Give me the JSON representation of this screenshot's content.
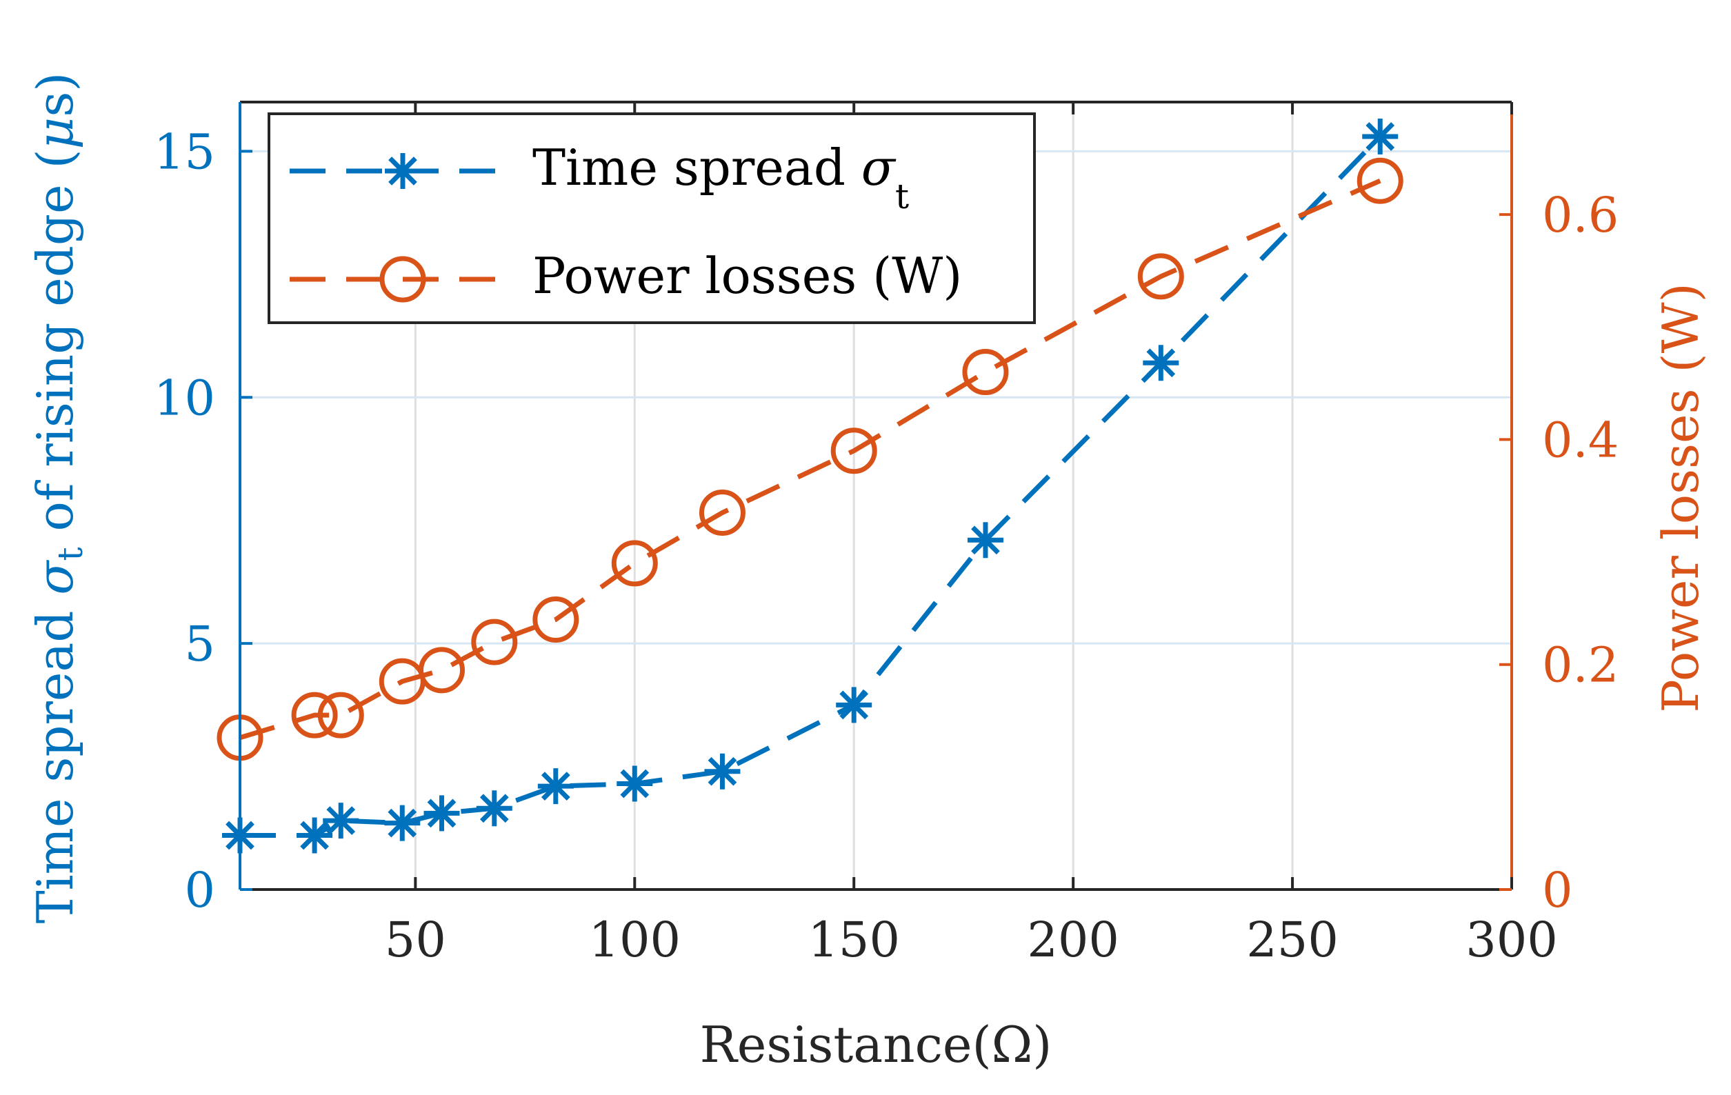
{
  "chart_data": {
    "type": "line",
    "xlabel": "Resistance(Ω)",
    "xlim": [
      10,
      300
    ],
    "xticks": [
      50,
      100,
      150,
      200,
      250,
      300
    ],
    "left_axis": {
      "label_pre": "Time spread ",
      "label_sigma": "σ",
      "label_sub": "t",
      "label_post": " of rising edge (",
      "label_mu": "μ",
      "label_unit": "s)",
      "ylim": [
        0,
        16
      ],
      "yticks": [
        0,
        5,
        10,
        15
      ],
      "color": "#0072BD"
    },
    "right_axis": {
      "label": "Power losses (W)",
      "ylim": [
        0,
        0.7
      ],
      "yticks": [
        0,
        0.2,
        0.4,
        0.6
      ],
      "color": "#D95319"
    },
    "x": [
      10,
      27,
      33,
      47,
      56,
      68,
      82,
      100,
      120,
      150,
      180,
      220,
      270
    ],
    "series": [
      {
        "name": "Time spread σt",
        "legend_text": "Time spread ",
        "legend_sigma": "σ",
        "legend_sub": "t",
        "axis": "left",
        "marker": "asterisk",
        "color": "#0072BD",
        "values": [
          1.1,
          1.1,
          1.4,
          1.35,
          1.55,
          1.65,
          2.1,
          2.15,
          2.4,
          3.75,
          7.1,
          10.7,
          15.3
        ]
      },
      {
        "name": "Power losses (W)",
        "legend_text": "Power losses (W)",
        "axis": "right",
        "marker": "circle",
        "color": "#D95319",
        "values": [
          0.135,
          0.155,
          0.155,
          0.185,
          0.195,
          0.22,
          0.24,
          0.29,
          0.335,
          0.39,
          0.46,
          0.545,
          0.63
        ]
      }
    ],
    "grid": true,
    "legend_position": "top-left"
  }
}
